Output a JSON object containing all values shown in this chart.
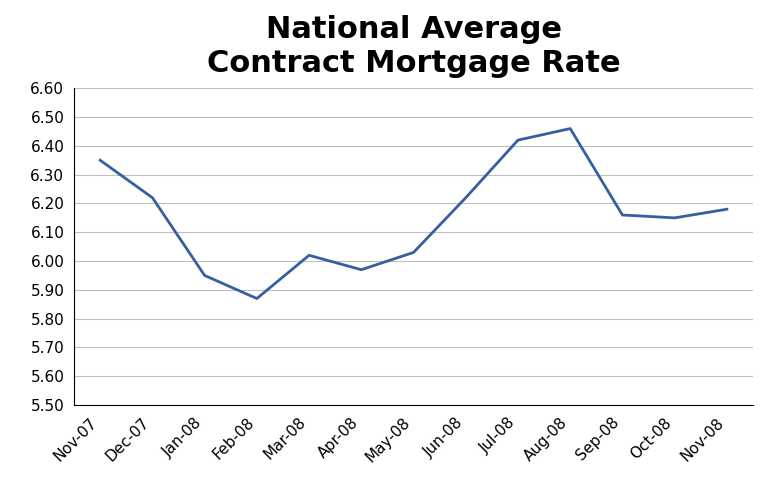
{
  "title": "National Average\nContract Mortgage Rate",
  "x_labels": [
    "Nov-07",
    "Dec-07",
    "Jan-08",
    "Feb-08",
    "Mar-08",
    "Apr-08",
    "May-08",
    "Jun-08",
    "Jul-08",
    "Aug-08",
    "Sep-08",
    "Oct-08",
    "Nov-08"
  ],
  "y_values": [
    6.35,
    6.22,
    5.95,
    5.87,
    6.02,
    5.97,
    6.03,
    6.22,
    6.42,
    6.46,
    6.16,
    6.15,
    6.18
  ],
  "line_color": "#3560A0",
  "line_width": 2.0,
  "ylim": [
    5.5,
    6.6
  ],
  "yticks": [
    5.5,
    5.6,
    5.7,
    5.8,
    5.9,
    6.0,
    6.1,
    6.2,
    6.3,
    6.4,
    6.5,
    6.6
  ],
  "title_fontsize": 22,
  "title_fontweight": "bold",
  "tick_fontsize": 11,
  "background_color": "#ffffff",
  "grid_color": "#c0c0c0"
}
